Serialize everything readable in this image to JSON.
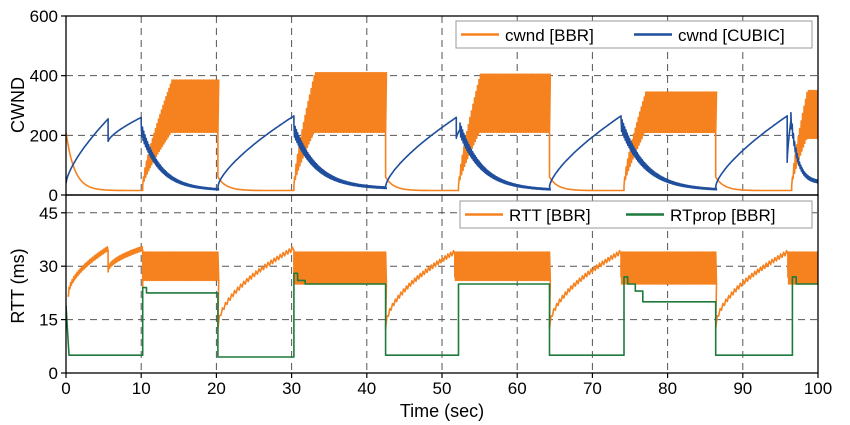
{
  "chart_data": [
    {
      "type": "line",
      "ylabel": "CWND",
      "ylim": [
        0,
        600
      ],
      "xlim": [
        0,
        100
      ],
      "yticks": [
        "0",
        "200",
        "400",
        "600"
      ],
      "grid": true,
      "legend_position": "top-right",
      "series": [
        {
          "name": "cwnd [BBR]",
          "color": "#f5821f",
          "segments": [
            {
              "type": "decay",
              "x0": 0,
              "x1": 10.2,
              "start": 210,
              "end": 15
            },
            {
              "type": "ramp_osc",
              "x0": 10.2,
              "x1": 20.2,
              "base_start": 30,
              "base_end": 210,
              "peak_start": 60,
              "peak_end": 385,
              "ramp_until": 14
            },
            {
              "type": "decay",
              "x0": 20.2,
              "x1": 30.3,
              "start": 60,
              "end": 15
            },
            {
              "type": "ramp_osc",
              "x0": 30.3,
              "x1": 42.5,
              "base_start": 30,
              "base_end": 210,
              "peak_start": 60,
              "peak_end": 410,
              "ramp_until": 33
            },
            {
              "type": "decay",
              "x0": 42.5,
              "x1": 52.2,
              "start": 60,
              "end": 15
            },
            {
              "type": "ramp_osc",
              "x0": 52.2,
              "x1": 64.3,
              "base_start": 30,
              "base_end": 210,
              "peak_start": 60,
              "peak_end": 405,
              "ramp_until": 55
            },
            {
              "type": "decay",
              "x0": 64.3,
              "x1": 74.2,
              "start": 60,
              "end": 15
            },
            {
              "type": "ramp_osc",
              "x0": 74.2,
              "x1": 86.4,
              "base_start": 30,
              "base_end": 210,
              "peak_start": 60,
              "peak_end": 345,
              "ramp_until": 77
            },
            {
              "type": "decay",
              "x0": 86.4,
              "x1": 96.5,
              "start": 60,
              "end": 15
            },
            {
              "type": "ramp_osc",
              "x0": 96.5,
              "x1": 100,
              "base_start": 30,
              "base_end": 190,
              "peak_start": 60,
              "peak_end": 350,
              "ramp_until": 98.5
            }
          ]
        },
        {
          "name": "cwnd [CUBIC]",
          "color": "#1f4e9c",
          "segments": [
            {
              "type": "growth",
              "x0": 0,
              "x1": 5.6,
              "start": 40,
              "end": 255
            },
            {
              "type": "growth",
              "x0": 5.6,
              "x1": 10.0,
              "start": 180,
              "end": 260
            },
            {
              "type": "decline",
              "x0": 10.0,
              "x1": 20.2,
              "start": 210,
              "end": 15
            },
            {
              "type": "growth",
              "x0": 20.2,
              "x1": 30.3,
              "start": 30,
              "end": 265
            },
            {
              "type": "decline",
              "x0": 30.3,
              "x1": 42.5,
              "start": 210,
              "end": 20
            },
            {
              "type": "growth",
              "x0": 42.5,
              "x1": 51.9,
              "start": 30,
              "end": 260
            },
            {
              "type": "growth",
              "x0": 51.9,
              "x1": 52.4,
              "start": 190,
              "end": 220
            },
            {
              "type": "decline",
              "x0": 52.4,
              "x1": 64.3,
              "start": 210,
              "end": 15
            },
            {
              "type": "growth",
              "x0": 64.3,
              "x1": 73.8,
              "start": 30,
              "end": 265
            },
            {
              "type": "decline",
              "x0": 73.8,
              "x1": 86.4,
              "start": 230,
              "end": 15
            },
            {
              "type": "growth",
              "x0": 86.4,
              "x1": 95.9,
              "start": 30,
              "end": 265
            },
            {
              "type": "growth",
              "x0": 95.9,
              "x1": 96.4,
              "start": 110,
              "end": 250
            },
            {
              "type": "decline",
              "x0": 96.4,
              "x1": 100,
              "start": 240,
              "end": 40
            }
          ]
        }
      ]
    },
    {
      "type": "line",
      "xlabel": "Time (sec)",
      "ylabel": "RTT (ms)",
      "ylim": [
        0,
        50
      ],
      "xlim": [
        0,
        100
      ],
      "xticks": [
        "0",
        "10",
        "20",
        "30",
        "40",
        "50",
        "60",
        "70",
        "80",
        "90",
        "100"
      ],
      "yticks": [
        "0",
        "15",
        "30",
        "45"
      ],
      "grid": true,
      "legend_position": "top-right",
      "series": [
        {
          "name": "RTT [BBR]",
          "color": "#f5821f",
          "segments": [
            {
              "type": "rise",
              "x0": 0.3,
              "x1": 5.6,
              "start": 22,
              "end": 35
            },
            {
              "type": "rise",
              "x0": 5.6,
              "x1": 10.2,
              "start": 29,
              "end": 35
            },
            {
              "type": "osc",
              "x0": 10.2,
              "x1": 20.2,
              "low": 26,
              "high": 34,
              "lead_in_from": 24
            },
            {
              "type": "rise",
              "x0": 20.2,
              "x1": 30.3,
              "start": 13,
              "end": 35
            },
            {
              "type": "osc",
              "x0": 30.3,
              "x1": 42.5,
              "low": 25,
              "high": 34,
              "lead_in_from": 27
            },
            {
              "type": "rise",
              "x0": 42.5,
              "x1": 51.7,
              "start": 13,
              "end": 34
            },
            {
              "type": "osc",
              "x0": 51.7,
              "x1": 64.3,
              "low": 26,
              "high": 34,
              "lead_in_from": 27
            },
            {
              "type": "rise",
              "x0": 64.3,
              "x1": 73.8,
              "start": 13,
              "end": 34
            },
            {
              "type": "osc",
              "x0": 73.8,
              "x1": 86.4,
              "low": 25,
              "high": 34,
              "lead_in_from": 27
            },
            {
              "type": "rise",
              "x0": 86.4,
              "x1": 96.0,
              "start": 13,
              "end": 34
            },
            {
              "type": "osc",
              "x0": 96.0,
              "x1": 100,
              "low": 25,
              "high": 34,
              "lead_in_from": 27
            }
          ]
        },
        {
          "name": "RTprop [BBR]",
          "color": "#1e7a3c",
          "points": [
            [
              0,
              19
            ],
            [
              0.4,
              5
            ],
            [
              10.2,
              5
            ],
            [
              10.2,
              24
            ],
            [
              10.7,
              24
            ],
            [
              10.7,
              22.5
            ],
            [
              20.2,
              22.5
            ],
            [
              20.2,
              4.5
            ],
            [
              30.3,
              4.5
            ],
            [
              30.3,
              28
            ],
            [
              30.8,
              28
            ],
            [
              30.8,
              26
            ],
            [
              31.8,
              26
            ],
            [
              31.8,
              25
            ],
            [
              42.5,
              25
            ],
            [
              42.5,
              5
            ],
            [
              52.2,
              5
            ],
            [
              52.2,
              25
            ],
            [
              64.3,
              25
            ],
            [
              64.3,
              5
            ],
            [
              74.2,
              5
            ],
            [
              74.2,
              27
            ],
            [
              74.7,
              27
            ],
            [
              74.7,
              25
            ],
            [
              75.7,
              25
            ],
            [
              75.7,
              23
            ],
            [
              76.7,
              23
            ],
            [
              76.7,
              20
            ],
            [
              86.4,
              20
            ],
            [
              86.4,
              5
            ],
            [
              96.6,
              5
            ],
            [
              96.6,
              27
            ],
            [
              97.1,
              27
            ],
            [
              97.1,
              25
            ],
            [
              100,
              25
            ]
          ]
        }
      ]
    }
  ]
}
